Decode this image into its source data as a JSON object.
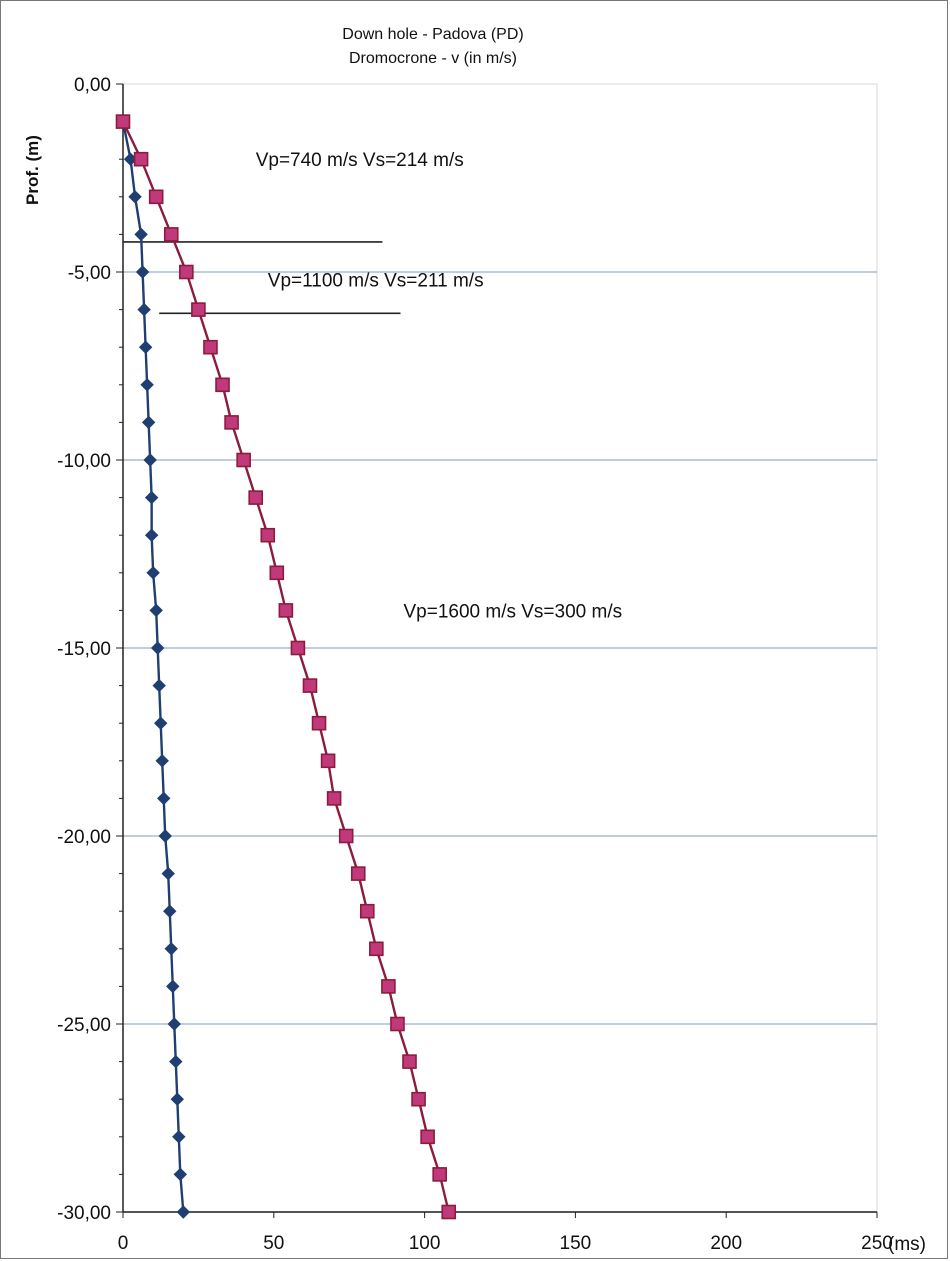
{
  "chart_data": {
    "type": "line",
    "title": "Down hole - Padova (PD)",
    "subtitle": "Dromocrone - v (in m/s)",
    "ylabel": "Prof. (m)",
    "xlabel": "(ms)",
    "xlim": [
      0,
      250
    ],
    "ylim": [
      -30,
      0
    ],
    "x_ticks": [
      0,
      50,
      100,
      150,
      200,
      250
    ],
    "x_tick_labels": [
      "0",
      "50",
      "100",
      "150",
      "200",
      "250"
    ],
    "y_ticks": [
      0,
      -5,
      -10,
      -15,
      -20,
      -25,
      -30
    ],
    "y_tick_labels": [
      "0,00",
      "-5,00",
      "-10,00",
      "-15,00",
      "-20,00",
      "-25,00",
      "-30,00"
    ],
    "grid": "horizontal at major y ticks",
    "colors": {
      "p_wave": "#1f3f73",
      "s_wave": "#8c1c3c",
      "s_wave_fill": "#c0397a",
      "grid": "#9ab0c4",
      "layer_line": "#222222"
    },
    "series": [
      {
        "marker": "diamond",
        "color": "#1f3f73",
        "points": [
          [
            0,
            -1
          ],
          [
            2.5,
            -2
          ],
          [
            4,
            -3
          ],
          [
            6,
            -4
          ],
          [
            6.5,
            -5
          ],
          [
            7,
            -6
          ],
          [
            7.5,
            -7
          ],
          [
            8,
            -8
          ],
          [
            8.5,
            -9
          ],
          [
            9,
            -10
          ],
          [
            9.5,
            -11
          ],
          [
            9.5,
            -12
          ],
          [
            10,
            -13
          ],
          [
            11,
            -14
          ],
          [
            11.5,
            -15
          ],
          [
            12,
            -16
          ],
          [
            12.5,
            -17
          ],
          [
            13,
            -18
          ],
          [
            13.5,
            -19
          ],
          [
            14,
            -20
          ],
          [
            15,
            -21
          ],
          [
            15.5,
            -22
          ],
          [
            16,
            -23
          ],
          [
            16.5,
            -24
          ],
          [
            17,
            -25
          ],
          [
            17.5,
            -26
          ],
          [
            18,
            -27
          ],
          [
            18.5,
            -28
          ],
          [
            19,
            -29
          ],
          [
            20,
            -30
          ]
        ]
      },
      {
        "marker": "square",
        "color": "#8c1c3c",
        "points": [
          [
            0,
            -1
          ],
          [
            6,
            -2
          ],
          [
            11,
            -3
          ],
          [
            16,
            -4
          ],
          [
            21,
            -5
          ],
          [
            25,
            -6
          ],
          [
            29,
            -7
          ],
          [
            33,
            -8
          ],
          [
            36,
            -9
          ],
          [
            40,
            -10
          ],
          [
            44,
            -11
          ],
          [
            48,
            -12
          ],
          [
            51,
            -13
          ],
          [
            54,
            -14
          ],
          [
            58,
            -15
          ],
          [
            62,
            -16
          ],
          [
            65,
            -17
          ],
          [
            68,
            -18
          ],
          [
            70,
            -19
          ],
          [
            74,
            -20
          ],
          [
            78,
            -21
          ],
          [
            81,
            -22
          ],
          [
            84,
            -23
          ],
          [
            88,
            -24
          ],
          [
            91,
            -25
          ],
          [
            95,
            -26
          ],
          [
            98,
            -27
          ],
          [
            101,
            -28
          ],
          [
            105,
            -29
          ],
          [
            108,
            -30
          ]
        ]
      }
    ],
    "layer_boundaries": [
      {
        "depth": -4.2,
        "x_from": 0,
        "x_to": 86
      },
      {
        "depth": -6.1,
        "x_from": 12,
        "x_to": 92
      }
    ],
    "annotations": [
      {
        "text": "Vp=740 m/s   Vs=214 m/s",
        "x": 44,
        "y": -2
      },
      {
        "text": "Vp=1100 m/s   Vs=211 m/s",
        "x": 48,
        "y": -5.2
      },
      {
        "text": "Vp=1600 m/s   Vs=300 m/s",
        "x": 93,
        "y": -14
      }
    ]
  }
}
